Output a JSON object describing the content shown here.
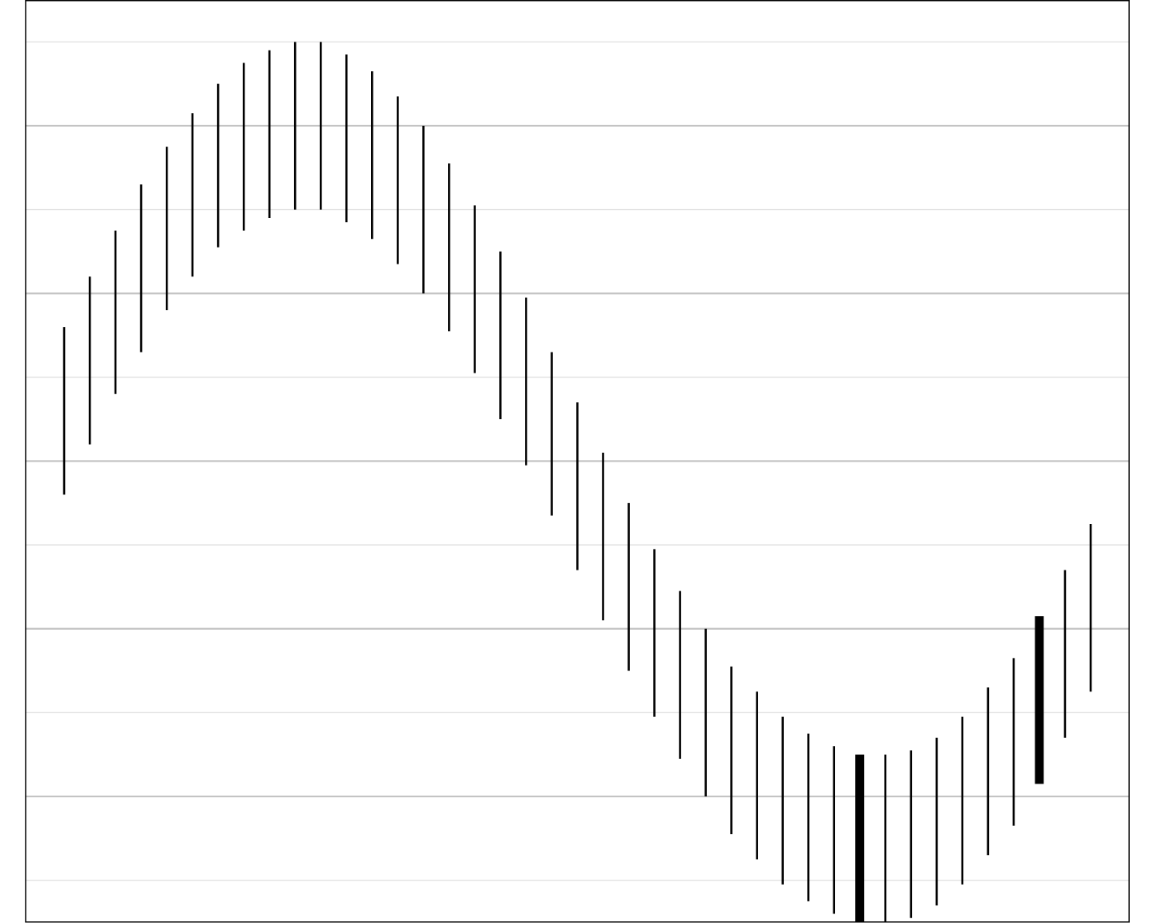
{
  "chart_data": {
    "type": "errorbar",
    "title": "",
    "xlabel": "",
    "ylabel": "",
    "xlim": [
      0.5,
      43.5
    ],
    "ylim": [
      -1.1,
      1.1
    ],
    "grid": true,
    "grid_major_y": [
      -0.8,
      -0.4,
      0.0,
      0.4,
      0.8
    ],
    "grid_minor_y": [
      -1.0,
      -0.6,
      -0.2,
      0.2,
      0.6,
      1.0
    ],
    "series": [
      {
        "x": [
          2,
          3,
          4,
          5,
          6,
          7,
          8,
          9,
          10,
          11,
          12,
          13,
          14,
          15,
          16,
          17,
          18,
          19,
          20,
          21,
          22,
          23,
          24,
          25,
          26,
          27,
          28,
          29,
          30,
          31,
          32,
          33,
          34,
          35,
          36,
          37,
          38,
          39,
          40,
          41,
          42
        ],
        "lower": [
          -0.08,
          0.04,
          0.16,
          0.26,
          0.36,
          0.44,
          0.51,
          0.55,
          0.58,
          0.6,
          0.6,
          0.57,
          0.53,
          0.47,
          0.4,
          0.31,
          0.21,
          0.1,
          -0.01,
          -0.13,
          -0.26,
          -0.38,
          -0.5,
          -0.61,
          -0.71,
          -0.8,
          -0.89,
          -0.95,
          -1.01,
          -1.05,
          -1.08,
          -1.1,
          -1.1,
          -1.09,
          -1.06,
          -1.01,
          -0.94,
          -0.87,
          -0.77,
          -0.66,
          -0.55
        ],
        "upper": [
          0.32,
          0.44,
          0.55,
          0.66,
          0.75,
          0.83,
          0.9,
          0.95,
          0.98,
          1.0,
          1.0,
          0.97,
          0.93,
          0.87,
          0.8,
          0.71,
          0.61,
          0.5,
          0.39,
          0.26,
          0.14,
          0.02,
          -0.1,
          -0.21,
          -0.31,
          -0.4,
          -0.49,
          -0.55,
          -0.61,
          -0.65,
          -0.68,
          -0.7,
          -0.7,
          -0.69,
          -0.66,
          -0.61,
          -0.54,
          -0.47,
          -0.37,
          -0.26,
          -0.15
        ],
        "highlight_x": [
          33,
          40
        ]
      }
    ]
  }
}
